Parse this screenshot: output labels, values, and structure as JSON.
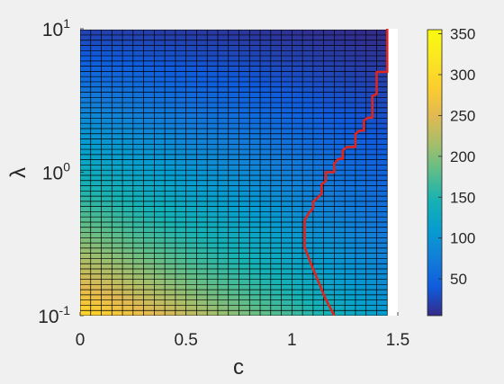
{
  "chart_data": {
    "type": "heatmap",
    "title": "",
    "xlabel": "c",
    "ylabel": "λ",
    "x_scale": "linear",
    "y_scale": "log",
    "xlim": [
      0,
      1.5
    ],
    "ylim": [
      0.1,
      10
    ],
    "x_ticks": [
      {
        "value": 0,
        "label": "0"
      },
      {
        "value": 0.5,
        "label": "0.5"
      },
      {
        "value": 1,
        "label": "1"
      },
      {
        "value": 1.5,
        "label": "1.5"
      }
    ],
    "y_ticks": [
      {
        "value": 0.1,
        "base": "10",
        "exp": "-1"
      },
      {
        "value": 1,
        "base": "10",
        "exp": "0"
      },
      {
        "value": 10,
        "base": "10",
        "exp": "1"
      }
    ],
    "grid": {
      "c_step": 0.05,
      "c_max": 1.45,
      "lambda_min": 0.1,
      "lambda_max": 10,
      "lambda_growth": 1.087,
      "line_color": "#000000"
    },
    "colorbar": {
      "colormap": "parula",
      "clim": [
        5,
        355
      ],
      "ticks": [
        {
          "value": 50,
          "label": "50"
        },
        {
          "value": 100,
          "label": "100"
        },
        {
          "value": 150,
          "label": "150"
        },
        {
          "value": 200,
          "label": "200"
        },
        {
          "value": 250,
          "label": "250"
        },
        {
          "value": 300,
          "label": "300"
        },
        {
          "value": 350,
          "label": "350"
        }
      ]
    },
    "heat_model": {
      "description": "value decreases with c and lambda",
      "corner_values": {
        "c0_lmin": 305,
        "c0_lmax": 20,
        "cmax_lmin": 110,
        "cmax_lmax": 5
      }
    },
    "boundary_line": {
      "name": "",
      "color": "#e0231c",
      "points": [
        {
          "c": 1.2,
          "lambda": 0.1
        },
        {
          "c": 1.16,
          "lambda": 0.13
        },
        {
          "c": 1.12,
          "lambda": 0.18
        },
        {
          "c": 1.09,
          "lambda": 0.23
        },
        {
          "c": 1.06,
          "lambda": 0.3
        },
        {
          "c": 1.06,
          "lambda": 0.46
        },
        {
          "c": 1.08,
          "lambda": 0.52
        },
        {
          "c": 1.1,
          "lambda": 0.56
        },
        {
          "c": 1.1,
          "lambda": 0.62
        },
        {
          "c": 1.12,
          "lambda": 0.66
        },
        {
          "c": 1.14,
          "lambda": 0.71
        },
        {
          "c": 1.14,
          "lambda": 0.82
        },
        {
          "c": 1.16,
          "lambda": 0.87
        },
        {
          "c": 1.16,
          "lambda": 1.0
        },
        {
          "c": 1.2,
          "lambda": 1.0
        },
        {
          "c": 1.2,
          "lambda": 1.15
        },
        {
          "c": 1.22,
          "lambda": 1.24
        },
        {
          "c": 1.24,
          "lambda": 1.24
        },
        {
          "c": 1.24,
          "lambda": 1.42
        },
        {
          "c": 1.26,
          "lambda": 1.5
        },
        {
          "c": 1.3,
          "lambda": 1.5
        },
        {
          "c": 1.3,
          "lambda": 1.85
        },
        {
          "c": 1.32,
          "lambda": 1.95
        },
        {
          "c": 1.34,
          "lambda": 1.95
        },
        {
          "c": 1.34,
          "lambda": 2.3
        },
        {
          "c": 1.36,
          "lambda": 2.4
        },
        {
          "c": 1.38,
          "lambda": 2.4
        },
        {
          "c": 1.38,
          "lambda": 3.4
        },
        {
          "c": 1.4,
          "lambda": 3.5
        },
        {
          "c": 1.4,
          "lambda": 5.0
        },
        {
          "c": 1.45,
          "lambda": 5.0
        },
        {
          "c": 1.45,
          "lambda": 10.0
        }
      ]
    }
  }
}
